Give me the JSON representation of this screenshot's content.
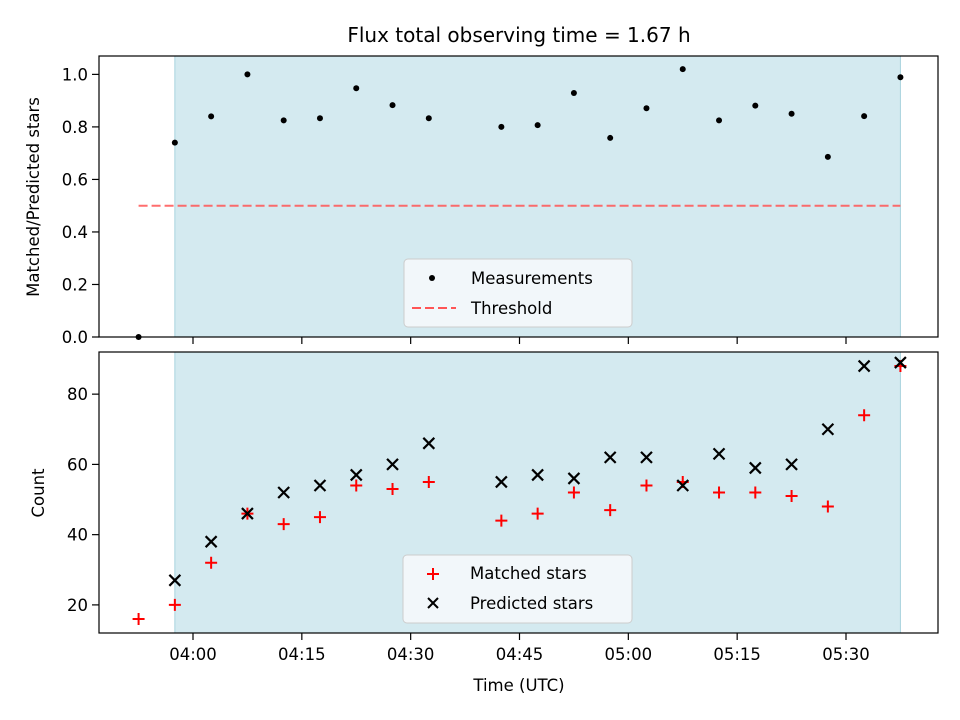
{
  "chart_data": [
    {
      "type": "scatter",
      "title": "Flux total observing time = 1.67 h",
      "xlabel": "",
      "ylabel": "Matched/Predicted stars",
      "ylim": [
        0,
        1.07
      ],
      "yticks": [
        "0.0",
        "0.2",
        "0.4",
        "0.6",
        "0.8",
        "1.0"
      ],
      "grid": false,
      "legend_position": "bottom-center",
      "shaded_interval": [
        "03:57:30",
        "05:37:30"
      ],
      "series": [
        {
          "name": "Measurements",
          "marker": "dot",
          "color": "#000000",
          "x": [
            "03:52:30",
            "03:57:30",
            "04:02:30",
            "04:07:30",
            "04:12:30",
            "04:17:30",
            "04:22:30",
            "04:27:30",
            "04:32:30",
            "04:42:30",
            "04:47:30",
            "04:52:30",
            "04:57:30",
            "05:02:30",
            "05:07:30",
            "05:12:30",
            "05:17:30",
            "05:22:30",
            "05:27:30",
            "05:32:30",
            "05:37:30"
          ],
          "values": [
            0.0,
            0.74,
            0.84,
            1.0,
            0.825,
            0.833,
            0.947,
            0.883,
            0.833,
            0.8,
            0.807,
            0.929,
            0.758,
            0.871,
            1.02,
            0.825,
            0.881,
            0.85,
            0.686,
            0.841,
            0.989
          ]
        },
        {
          "name": "Threshold",
          "style": "dashed",
          "color": "#ff5555",
          "x": [
            "03:52:30",
            "05:37:30"
          ],
          "values": [
            0.5,
            0.5
          ]
        }
      ]
    },
    {
      "type": "scatter",
      "title": "",
      "xlabel": "Time (UTC)",
      "ylabel": "Count",
      "ylim": [
        12,
        92
      ],
      "yticks": [
        "20",
        "40",
        "60",
        "80"
      ],
      "xticks": [
        "04:00",
        "04:15",
        "04:30",
        "04:45",
        "05:00",
        "05:15",
        "05:30"
      ],
      "grid": false,
      "legend_position": "bottom-center",
      "shaded_interval": [
        "03:57:30",
        "05:37:30"
      ],
      "series": [
        {
          "name": "Matched stars",
          "marker": "plus",
          "color": "#ff0000",
          "x": [
            "03:52:30",
            "03:57:30",
            "04:02:30",
            "04:07:30",
            "04:12:30",
            "04:17:30",
            "04:22:30",
            "04:27:30",
            "04:32:30",
            "04:42:30",
            "04:47:30",
            "04:52:30",
            "04:57:30",
            "05:02:30",
            "05:07:30",
            "05:12:30",
            "05:17:30",
            "05:22:30",
            "05:27:30",
            "05:32:30",
            "05:37:30"
          ],
          "values": [
            16,
            20,
            32,
            46,
            43,
            45,
            54,
            53,
            55,
            44,
            46,
            52,
            47,
            54,
            55,
            52,
            52,
            51,
            48,
            74,
            88
          ]
        },
        {
          "name": "Predicted stars",
          "marker": "x",
          "color": "#000000",
          "x": [
            "03:57:30",
            "04:02:30",
            "04:07:30",
            "04:12:30",
            "04:17:30",
            "04:22:30",
            "04:27:30",
            "04:32:30",
            "04:42:30",
            "04:47:30",
            "04:52:30",
            "04:57:30",
            "05:02:30",
            "05:07:30",
            "05:12:30",
            "05:17:30",
            "05:22:30",
            "05:27:30",
            "05:32:30",
            "05:37:30"
          ],
          "values": [
            27,
            38,
            46,
            52,
            54,
            57,
            60,
            66,
            55,
            57,
            56,
            62,
            62,
            54,
            63,
            59,
            60,
            70,
            88,
            89
          ]
        }
      ]
    }
  ],
  "colors": {
    "shade": "#d4eaf0",
    "legend_bg": "#f7f9fb",
    "legend_edge": "#cccccc"
  }
}
